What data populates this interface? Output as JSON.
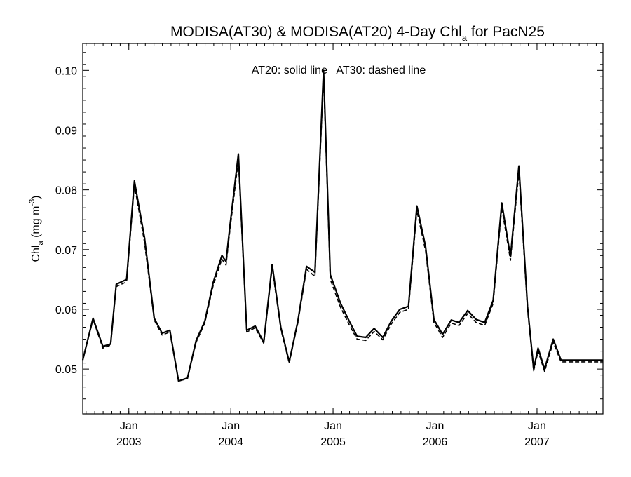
{
  "chart_data": {
    "type": "line",
    "title": {
      "main": "MODISA(AT30) & MODISA(AT20) 4-Day Chl",
      "sub": "a",
      "suffix": " for PacN25"
    },
    "ylabel": {
      "main": "Chl",
      "sub": "a",
      "unit": " (mg m",
      "sup": "-3",
      "close": ")"
    },
    "annotation": "AT20: solid line   AT30: dashed line",
    "ylim": [
      0.0425,
      0.1045
    ],
    "xlim": [
      "2002-07-20",
      "2007-08-25"
    ],
    "yticks": [
      0.05,
      0.06,
      0.07,
      0.08,
      0.09,
      0.1
    ],
    "ytick_labels": [
      "0.05",
      "0.06",
      "0.07",
      "0.08",
      "0.09",
      "0.10"
    ],
    "xticks": [
      {
        "date": "2003-01-01",
        "month": "Jan",
        "year": "2003"
      },
      {
        "date": "2004-01-01",
        "month": "Jan",
        "year": "2004"
      },
      {
        "date": "2005-01-01",
        "month": "Jan",
        "year": "2005"
      },
      {
        "date": "2006-01-01",
        "month": "Jan",
        "year": "2006"
      },
      {
        "date": "2007-01-01",
        "month": "Jan",
        "year": "2007"
      }
    ],
    "x": [
      "2002-07-20",
      "2002-08-26",
      "2002-09-30",
      "2002-10-28",
      "2002-11-17",
      "2002-12-24",
      "2003-01-21",
      "2003-02-26",
      "2003-04-02",
      "2003-04-30",
      "2003-05-28",
      "2003-06-28",
      "2003-07-30",
      "2003-08-30",
      "2003-09-30",
      "2003-10-30",
      "2003-11-30",
      "2003-12-15",
      "2003-12-29",
      "2004-01-28",
      "2004-02-27",
      "2004-03-28",
      "2004-04-28",
      "2004-05-28",
      "2004-06-28",
      "2004-07-28",
      "2004-08-28",
      "2004-09-28",
      "2004-10-28",
      "2004-11-28",
      "2004-12-22",
      "2005-01-28",
      "2005-02-28",
      "2005-03-28",
      "2005-04-28",
      "2005-05-28",
      "2005-06-28",
      "2005-07-28",
      "2005-08-28",
      "2005-09-28",
      "2005-10-28",
      "2005-11-28",
      "2005-12-28",
      "2006-01-28",
      "2006-02-28",
      "2006-03-28",
      "2006-04-28",
      "2006-05-28",
      "2006-06-28",
      "2006-07-28",
      "2006-08-28",
      "2006-09-28",
      "2006-10-28",
      "2006-11-28",
      "2006-12-20",
      "2007-01-05",
      "2007-01-28",
      "2007-02-28",
      "2007-03-28",
      "2007-04-28",
      "2007-05-28",
      "2007-06-28",
      "2007-07-28",
      "2007-08-25"
    ],
    "series": [
      {
        "name": "AT20",
        "style": "solid",
        "values": [
          0.0515,
          0.0585,
          0.0538,
          0.0542,
          0.0642,
          0.065,
          0.0815,
          0.072,
          0.0585,
          0.056,
          0.0565,
          0.048,
          0.0485,
          0.0548,
          0.058,
          0.0645,
          0.069,
          0.068,
          0.074,
          0.086,
          0.0565,
          0.0572,
          0.0545,
          0.0675,
          0.057,
          0.0512,
          0.058,
          0.0672,
          0.0662,
          0.1,
          0.0658,
          0.061,
          0.058,
          0.0555,
          0.0553,
          0.0568,
          0.0553,
          0.058,
          0.06,
          0.0605,
          0.0773,
          0.0705,
          0.0583,
          0.0558,
          0.0582,
          0.0578,
          0.0598,
          0.0583,
          0.0578,
          0.0615,
          0.0778,
          0.0688,
          0.084,
          0.0605,
          0.05,
          0.0535,
          0.05,
          0.055,
          0.0515,
          0.0515,
          0.0515,
          0.0515,
          0.0515,
          0.0515
        ]
      },
      {
        "name": "AT30",
        "style": "dashed",
        "values": [
          0.0515,
          0.0583,
          0.0535,
          0.054,
          0.0638,
          0.0646,
          0.0808,
          0.0712,
          0.0582,
          0.0557,
          0.0562,
          0.048,
          0.0484,
          0.0545,
          0.0577,
          0.064,
          0.0684,
          0.0674,
          0.0733,
          0.085,
          0.0562,
          0.0569,
          0.0543,
          0.067,
          0.0567,
          0.051,
          0.0577,
          0.0667,
          0.0655,
          0.099,
          0.065,
          0.0603,
          0.0574,
          0.055,
          0.0548,
          0.0563,
          0.0549,
          0.0575,
          0.0595,
          0.06,
          0.0765,
          0.0698,
          0.0578,
          0.0553,
          0.0577,
          0.0573,
          0.0593,
          0.0578,
          0.0573,
          0.061,
          0.077,
          0.0682,
          0.083,
          0.06,
          0.0497,
          0.053,
          0.0496,
          0.0545,
          0.0512,
          0.0512,
          0.0512,
          0.0512,
          0.0512,
          0.0512
        ]
      }
    ]
  }
}
